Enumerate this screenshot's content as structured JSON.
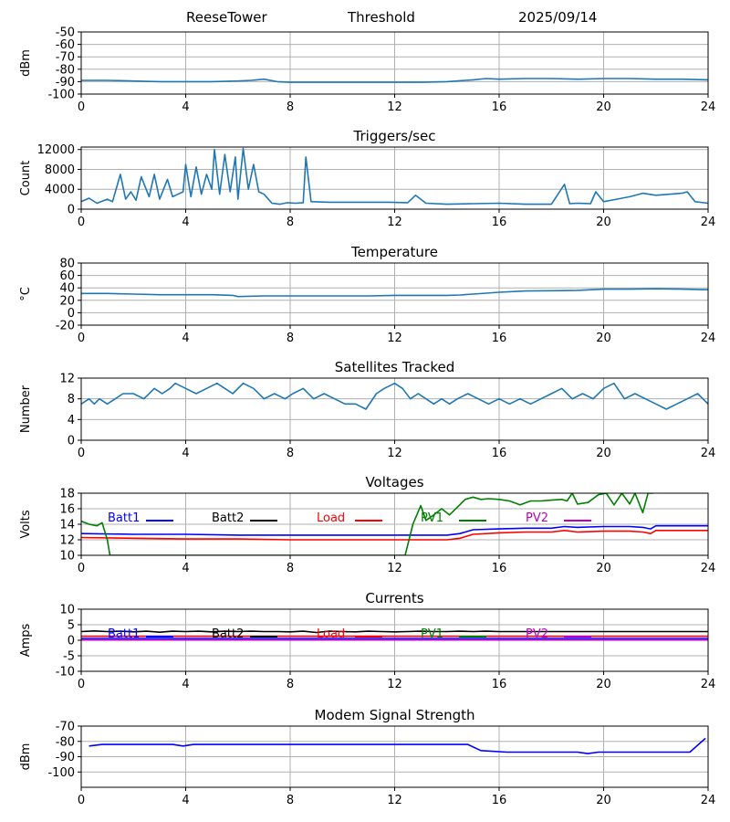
{
  "header": {
    "site": "ReeseTower",
    "mode": "Threshold",
    "date": "2025/09/14"
  },
  "colors": {
    "default": "#1f77b4",
    "Batt1": "#0000ff",
    "Batt2": "#000000",
    "Load": "#ff0000",
    "PV1": "#008000",
    "PV2": "#c000c0",
    "modem": "#0000ff",
    "grid": "#b0b0b0"
  },
  "chart_data": [
    {
      "id": "threshold",
      "type": "line",
      "title": "",
      "ylabel": "dBm",
      "xlim": [
        0,
        24
      ],
      "ylim": [
        -100,
        -50
      ],
      "xticks": [
        0,
        4,
        8,
        12,
        16,
        20,
        24
      ],
      "yticks": [
        -100,
        -90,
        -80,
        -70,
        -60,
        -50
      ],
      "series": [
        {
          "name": "Threshold",
          "color": "#1f77b4",
          "x": [
            0,
            1,
            2,
            3,
            4,
            5,
            6,
            6.5,
            7,
            7.5,
            8,
            9,
            10,
            11,
            12,
            13,
            14,
            15,
            15.5,
            16,
            17,
            18,
            19,
            20,
            21,
            22,
            23,
            24
          ],
          "y": [
            -89,
            -89,
            -89.5,
            -90,
            -90,
            -90,
            -89.5,
            -89,
            -88,
            -90,
            -90.5,
            -90.5,
            -90.5,
            -90.5,
            -90.5,
            -90.5,
            -90,
            -88.5,
            -87.5,
            -88,
            -87.5,
            -87.5,
            -88,
            -87.5,
            -87.5,
            -88,
            -88,
            -88.5
          ]
        }
      ]
    },
    {
      "id": "triggers",
      "type": "line",
      "title": "Triggers/sec",
      "ylabel": "Count",
      "xlim": [
        0,
        24
      ],
      "ylim": [
        0,
        12500
      ],
      "xticks": [
        0,
        4,
        8,
        12,
        16,
        20,
        24
      ],
      "yticks": [
        0,
        4000,
        8000,
        12000
      ],
      "series": [
        {
          "name": "Triggers",
          "color": "#1f77b4",
          "x": [
            0,
            0.3,
            0.6,
            1,
            1.2,
            1.5,
            1.7,
            1.9,
            2.1,
            2.3,
            2.6,
            2.8,
            3.0,
            3.3,
            3.5,
            3.7,
            3.9,
            4.0,
            4.2,
            4.4,
            4.6,
            4.8,
            5.0,
            5.1,
            5.3,
            5.5,
            5.7,
            5.9,
            6.0,
            6.2,
            6.4,
            6.6,
            6.8,
            7.0,
            7.3,
            7.6,
            7.9,
            8.2,
            8.5,
            8.6,
            8.8,
            9.5,
            10.2,
            11,
            11.8,
            12.5,
            12.8,
            13.2,
            14,
            15,
            16,
            17,
            18,
            18.5,
            18.7,
            19,
            19.5,
            19.7,
            20,
            20.5,
            21,
            21.5,
            22,
            22.5,
            23,
            23.2,
            23.5,
            24
          ],
          "y": [
            1500,
            2200,
            1200,
            2000,
            1500,
            7000,
            2000,
            3500,
            1800,
            6500,
            2500,
            7000,
            2000,
            6000,
            2500,
            3000,
            3500,
            9000,
            2500,
            8500,
            3000,
            7000,
            4000,
            12000,
            3000,
            11000,
            3500,
            10500,
            2000,
            12200,
            4000,
            9000,
            3500,
            3000,
            1200,
            1000,
            1300,
            1200,
            1300,
            10500,
            1500,
            1400,
            1400,
            1400,
            1400,
            1300,
            2800,
            1200,
            1000,
            1100,
            1200,
            1000,
            1000,
            5000,
            1100,
            1200,
            1100,
            3500,
            1500,
            2000,
            2500,
            3200,
            2800,
            3000,
            3200,
            3500,
            1500,
            1200
          ]
        }
      ]
    },
    {
      "id": "temperature",
      "type": "line",
      "title": "Temperature",
      "ylabel": "°C",
      "xlim": [
        0,
        24
      ],
      "ylim": [
        -20,
        80
      ],
      "xticks": [
        0,
        4,
        8,
        12,
        16,
        20,
        24
      ],
      "yticks": [
        -20,
        0,
        20,
        40,
        60,
        80
      ],
      "series": [
        {
          "name": "Temperature",
          "color": "#1f77b4",
          "x": [
            0,
            1,
            2,
            3,
            4,
            5,
            5.8,
            6,
            7,
            8,
            9,
            10,
            11,
            12,
            13,
            14,
            14.5,
            15,
            16,
            17,
            18,
            19,
            20,
            21,
            22,
            23,
            24
          ],
          "y": [
            31,
            31,
            30,
            29,
            29,
            29,
            28,
            26,
            27,
            27,
            27,
            27,
            27,
            28,
            28,
            28,
            28.5,
            30,
            33,
            35,
            35.5,
            36,
            38,
            38,
            38.5,
            38,
            37
          ]
        }
      ]
    },
    {
      "id": "satellites",
      "type": "line",
      "title": "Satellites Tracked",
      "ylabel": "Number",
      "xlim": [
        0,
        24
      ],
      "ylim": [
        0,
        12
      ],
      "xticks": [
        0,
        4,
        8,
        12,
        16,
        20,
        24
      ],
      "yticks": [
        0,
        4,
        8,
        12
      ],
      "series": [
        {
          "name": "Satellites",
          "color": "#1f77b4",
          "x": [
            0,
            0.3,
            0.5,
            0.7,
            1.0,
            1.3,
            1.6,
            2.0,
            2.4,
            2.8,
            3.1,
            3.4,
            3.6,
            4.0,
            4.4,
            4.8,
            5.2,
            5.5,
            5.8,
            6.2,
            6.6,
            7.0,
            7.4,
            7.8,
            8.1,
            8.5,
            8.9,
            9.3,
            9.7,
            10.1,
            10.5,
            10.9,
            11.3,
            11.6,
            12.0,
            12.3,
            12.6,
            12.9,
            13.2,
            13.5,
            13.8,
            14.1,
            14.4,
            14.8,
            15.2,
            15.6,
            16.0,
            16.4,
            16.8,
            17.2,
            17.6,
            18.0,
            18.4,
            18.8,
            19.2,
            19.6,
            20.0,
            20.4,
            20.8,
            21.2,
            21.6,
            22.0,
            22.4,
            22.8,
            23.2,
            23.6,
            24
          ],
          "y": [
            7,
            8,
            7,
            8,
            7,
            8,
            9,
            9,
            8,
            10,
            9,
            10,
            11,
            10,
            9,
            10,
            11,
            10,
            9,
            11,
            10,
            8,
            9,
            8,
            9,
            10,
            8,
            9,
            8,
            7,
            7,
            6,
            9,
            10,
            11,
            10,
            8,
            9,
            8,
            7,
            8,
            7,
            8,
            9,
            8,
            7,
            8,
            7,
            8,
            7,
            8,
            9,
            10,
            8,
            9,
            8,
            10,
            11,
            8,
            9,
            8,
            7,
            6,
            7,
            8,
            9,
            7
          ]
        }
      ]
    },
    {
      "id": "voltages",
      "type": "line",
      "title": "Voltages",
      "ylabel": "Volts",
      "xlim": [
        0,
        24
      ],
      "ylim": [
        10,
        18
      ],
      "xticks": [
        0,
        4,
        8,
        12,
        16,
        20,
        24
      ],
      "yticks": [
        10,
        12,
        14,
        16,
        18
      ],
      "legend": [
        "Batt1",
        "Batt2",
        "Load",
        "PV1",
        "PV2"
      ],
      "series": [
        {
          "name": "Batt1",
          "color": "#0000ff",
          "x": [
            0,
            2,
            4,
            6,
            8,
            10,
            12,
            14,
            14.5,
            15,
            16,
            17,
            18,
            18.5,
            19,
            20,
            21,
            21.5,
            21.8,
            22,
            23,
            24
          ],
          "y": [
            12.8,
            12.7,
            12.7,
            12.6,
            12.6,
            12.6,
            12.6,
            12.6,
            12.8,
            13.3,
            13.4,
            13.5,
            13.5,
            13.7,
            13.6,
            13.7,
            13.7,
            13.6,
            13.4,
            13.8,
            13.8,
            13.8
          ]
        },
        {
          "name": "Batt2",
          "color": "#000000",
          "x": [],
          "y": []
        },
        {
          "name": "Load",
          "color": "#ff0000",
          "x": [
            0,
            2,
            4,
            6,
            8,
            10,
            12,
            14,
            14.5,
            15,
            16,
            17,
            18,
            18.5,
            19,
            20,
            21,
            21.5,
            21.8,
            22,
            23,
            24
          ],
          "y": [
            12.3,
            12.2,
            12.1,
            12.1,
            12.0,
            12.0,
            12.0,
            12.0,
            12.2,
            12.7,
            12.9,
            13.0,
            13.0,
            13.2,
            13.0,
            13.1,
            13.1,
            13.0,
            12.8,
            13.2,
            13.2,
            13.2
          ]
        },
        {
          "name": "PV1",
          "color": "#008000",
          "x": [
            0,
            0.3,
            0.6,
            0.8,
            1.0,
            1.1,
            12.4,
            12.7,
            13.0,
            13.2,
            13.5,
            13.8,
            14.1,
            14.4,
            14.7,
            15.0,
            15.3,
            15.6,
            16.0,
            16.4,
            16.8,
            17.2,
            17.6,
            18.0,
            18.4,
            18.6,
            18.8,
            19.0,
            19.4,
            19.8,
            20.1,
            20.4,
            20.7,
            21.0,
            21.2,
            21.5,
            21.7,
            21.9
          ],
          "y": [
            14.4,
            14,
            13.8,
            14.2,
            12,
            10,
            10,
            14,
            16.4,
            14.5,
            15.2,
            16,
            15.2,
            16.2,
            17.2,
            17.5,
            17.2,
            17.3,
            17.2,
            17,
            16.5,
            17,
            17,
            17.1,
            17.2,
            17.0,
            18,
            16.6,
            16.8,
            17.8,
            18,
            16.5,
            18,
            16.6,
            18,
            15.5,
            18,
            18
          ]
        },
        {
          "name": "PV2",
          "color": "#c000c0",
          "x": [],
          "y": []
        }
      ]
    },
    {
      "id": "currents",
      "type": "line",
      "title": "Currents",
      "ylabel": "Amps",
      "xlim": [
        0,
        24
      ],
      "ylim": [
        -10,
        10
      ],
      "xticks": [
        0,
        4,
        8,
        12,
        16,
        20,
        24
      ],
      "yticks": [
        -10,
        -5,
        0,
        5,
        10
      ],
      "legend": [
        "Batt1",
        "Batt2",
        "Load",
        "PV1",
        "PV2"
      ],
      "series": [
        {
          "name": "Batt2",
          "color": "#000000",
          "x": [
            0,
            0.5,
            1,
            1.5,
            2,
            2.5,
            3,
            3.5,
            4,
            4.5,
            5,
            5.5,
            6,
            6.5,
            7,
            7.5,
            8,
            8.5,
            9,
            9.5,
            10,
            10.5,
            11,
            11.5,
            12,
            12.5,
            13,
            13.5,
            14,
            14.5,
            15,
            15.5,
            16,
            16.5,
            17,
            17.5,
            18,
            18.5,
            19,
            20,
            21,
            22,
            23,
            24
          ],
          "y": [
            2.8,
            3.0,
            2.8,
            2.9,
            2.7,
            2.9,
            2.6,
            2.9,
            2.8,
            2.9,
            2.7,
            2.9,
            2.8,
            2.9,
            2.8,
            2.8,
            2.7,
            2.9,
            2.5,
            2.9,
            2.8,
            2.7,
            2.9,
            2.8,
            2.7,
            2.8,
            2.9,
            2.8,
            2.8,
            2.9,
            2.8,
            2.9,
            2.8,
            2.8,
            2.8,
            2.8,
            2.8,
            2.8,
            2.8,
            2.8,
            2.8,
            2.8,
            2.8,
            2.8
          ]
        },
        {
          "name": "Load",
          "color": "#ff0000",
          "x": [
            0,
            24
          ],
          "y": [
            1.3,
            1.3
          ]
        },
        {
          "name": "Batt1",
          "color": "#0000ff",
          "x": [
            0,
            24
          ],
          "y": [
            0.6,
            0.6
          ]
        },
        {
          "name": "PV1",
          "color": "#008000",
          "x": [],
          "y": []
        },
        {
          "name": "PV2",
          "color": "#c000c0",
          "x": [
            0,
            24
          ],
          "y": [
            0.1,
            0.1
          ]
        }
      ]
    },
    {
      "id": "modem",
      "type": "line",
      "title": "Modem Signal Strength",
      "ylabel": "dBm",
      "xlim": [
        0,
        24
      ],
      "ylim": [
        -110,
        -70
      ],
      "xticks": [
        0,
        4,
        8,
        12,
        16,
        20,
        24
      ],
      "yticks": [
        -100,
        -90,
        -80,
        -70
      ],
      "series": [
        {
          "name": "Modem",
          "color": "#0000ff",
          "x": [
            0.3,
            0.8,
            3.5,
            3.9,
            4.3,
            8,
            12,
            14.8,
            15.3,
            16.3,
            19,
            19.4,
            19.8,
            23.3,
            23.9
          ],
          "y": [
            -83,
            -82,
            -82,
            -83,
            -82,
            -82,
            -82,
            -82,
            -86,
            -87,
            -87,
            -88,
            -87,
            -87,
            -78
          ]
        }
      ]
    }
  ]
}
